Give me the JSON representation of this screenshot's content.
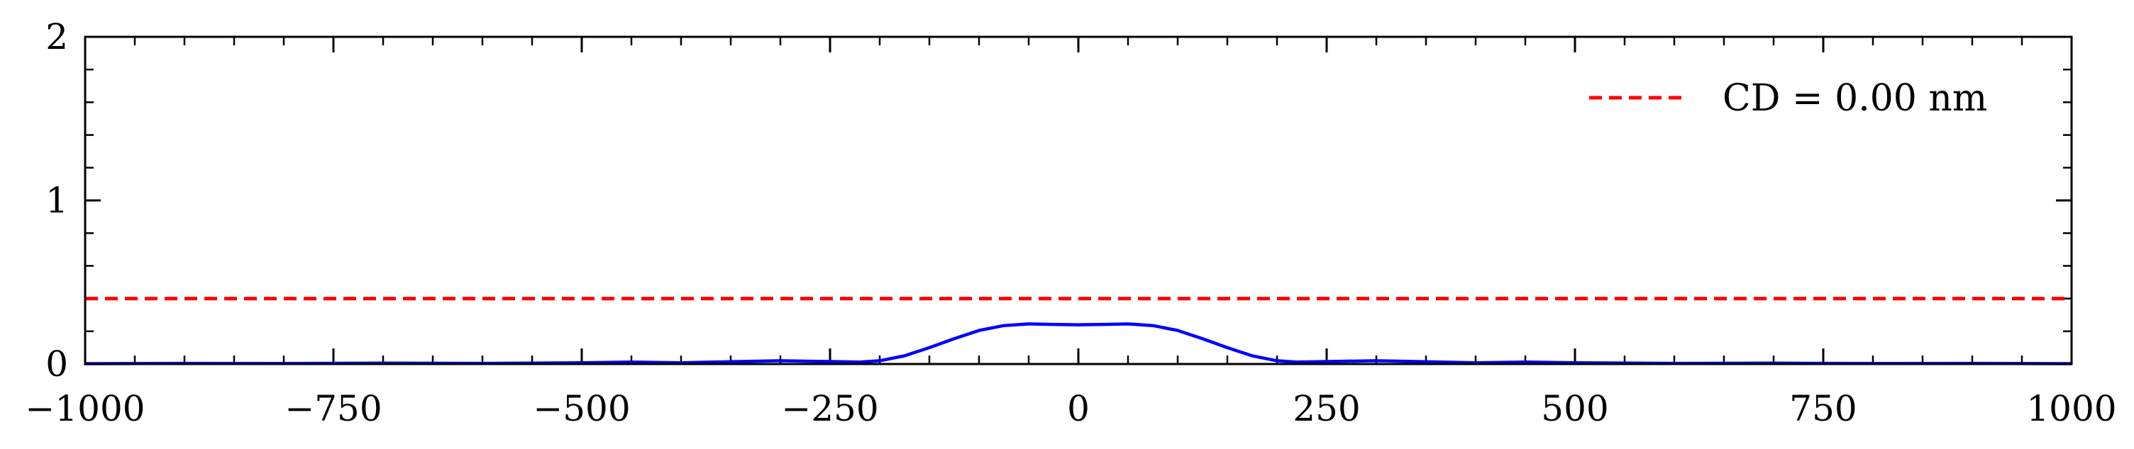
{
  "chart_data": {
    "type": "line",
    "title": "",
    "xlabel": "",
    "ylabel": "",
    "xlim": [
      -1000,
      1000
    ],
    "ylim": [
      0,
      2
    ],
    "grid": false,
    "legend_position": "top-right",
    "x_ticks": [
      -1000,
      -750,
      -500,
      -250,
      0,
      250,
      500,
      750,
      1000
    ],
    "x_tick_labels": [
      "−1000",
      "−750",
      "−500",
      "−250",
      "0",
      "250",
      "500",
      "750",
      "1000"
    ],
    "y_ticks": [
      0,
      1,
      2
    ],
    "y_tick_labels": [
      "0",
      "1",
      "2"
    ],
    "series": [
      {
        "style": "solid",
        "color": "#0000ff",
        "x": [
          -1000,
          -900,
          -800,
          -700,
          -600,
          -500,
          -450,
          -400,
          -350,
          -300,
          -250,
          -220,
          -200,
          -175,
          -150,
          -125,
          -100,
          -75,
          -50,
          -25,
          0,
          25,
          50,
          75,
          100,
          125,
          150,
          175,
          200,
          220,
          250,
          300,
          350,
          400,
          450,
          500,
          600,
          700,
          800,
          900,
          1000
        ],
        "y": [
          0.002,
          0.004,
          0.003,
          0.005,
          0.004,
          0.008,
          0.012,
          0.008,
          0.014,
          0.02,
          0.015,
          0.012,
          0.02,
          0.05,
          0.1,
          0.155,
          0.205,
          0.235,
          0.245,
          0.242,
          0.24,
          0.242,
          0.245,
          0.235,
          0.205,
          0.155,
          0.1,
          0.05,
          0.02,
          0.012,
          0.015,
          0.02,
          0.014,
          0.008,
          0.012,
          0.008,
          0.004,
          0.005,
          0.003,
          0.004,
          0.002
        ]
      },
      {
        "name": "CD = 0.00 nm",
        "style": "dashed",
        "color": "#ff0000",
        "y_constant": 0.4
      }
    ]
  }
}
